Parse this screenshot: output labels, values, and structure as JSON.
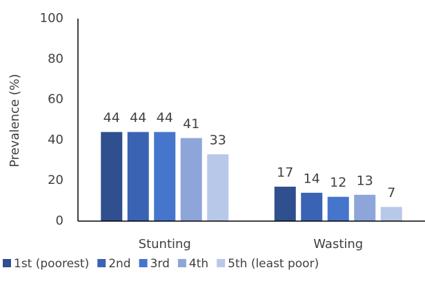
{
  "chart_data": {
    "type": "bar",
    "y_label": "Prevalence (%)",
    "categories": [
      "Stunting",
      "Wasting"
    ],
    "series": [
      {
        "name": "1st (poorest)",
        "color": "#2f4f8f",
        "values": [
          44,
          17
        ]
      },
      {
        "name": "2nd",
        "color": "#3a63b3",
        "values": [
          44,
          14
        ]
      },
      {
        "name": "3rd",
        "color": "#4675cc",
        "values": [
          44,
          12
        ]
      },
      {
        "name": "4th",
        "color": "#8ea5da",
        "values": [
          41,
          13
        ]
      },
      {
        "name": "5th (least poor)",
        "color": "#b8c8e8",
        "values": [
          33,
          7
        ]
      }
    ],
    "ylim": [
      0,
      100
    ],
    "yticks": [
      0,
      20,
      40,
      60,
      80,
      100
    ],
    "grid": false,
    "legend": "bottom"
  }
}
